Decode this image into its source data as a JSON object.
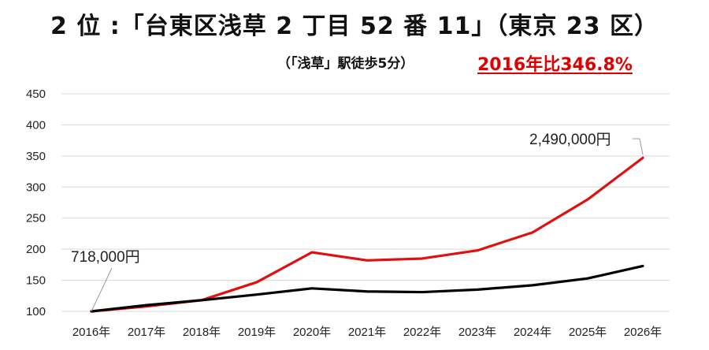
{
  "header": {
    "title": "2 位 :「台東区浅草 2 丁目 52 番 11」（東京 23 区）",
    "subtitle": "（「浅草」駅徒歩5分）",
    "highlight": "2016年比346.8%"
  },
  "colors": {
    "series_red": "#e01010",
    "series_black": "#000000",
    "grid": "#d9d9d9",
    "highlight": "#e00000"
  },
  "chart_data": {
    "type": "line",
    "categories": [
      "2016年",
      "2017年",
      "2018年",
      "2019年",
      "2020年",
      "2021年",
      "2022年",
      "2023年",
      "2024年",
      "2025年",
      "2026年"
    ],
    "ylim": [
      100,
      450
    ],
    "yticks": [
      100,
      150,
      200,
      250,
      300,
      350,
      400,
      450
    ],
    "grid": true,
    "series": [
      {
        "color": "#e01010",
        "values": [
          100,
          108,
          118,
          147,
          195,
          182,
          185,
          198,
          227,
          280,
          347
        ]
      },
      {
        "color": "#000000",
        "values": [
          100,
          110,
          118,
          127,
          137,
          132,
          131,
          135,
          142,
          153,
          173
        ]
      }
    ],
    "annotations": [
      {
        "text": "718,000円",
        "category": "2016年",
        "value": 100
      },
      {
        "text": "2,490,000円",
        "category": "2026年",
        "value": 347
      }
    ]
  }
}
